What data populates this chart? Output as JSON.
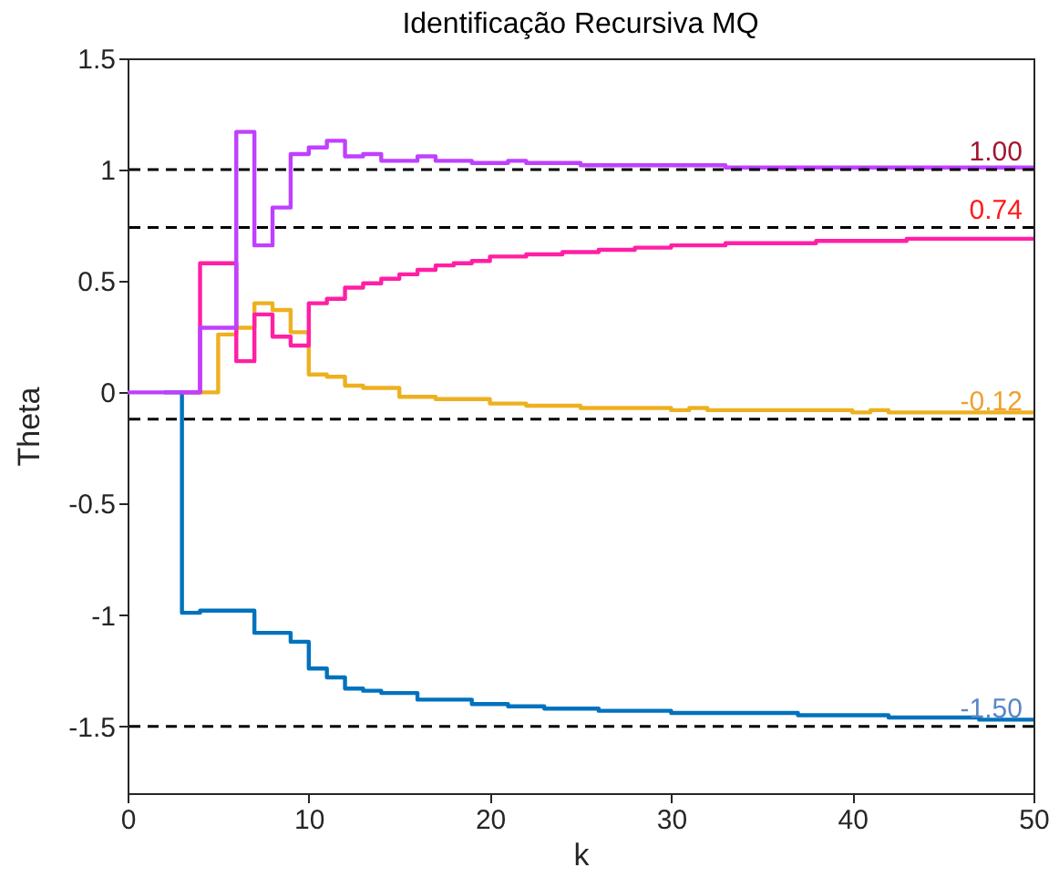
{
  "chart_data": {
    "type": "step",
    "title": "Identificação Recursiva MQ",
    "xlabel": "k",
    "ylabel": "Theta",
    "x": [
      0,
      1,
      2,
      3,
      4,
      5,
      6,
      7,
      8,
      9,
      10,
      11,
      12,
      13,
      14,
      15,
      16,
      17,
      18,
      19,
      20,
      21,
      22,
      23,
      24,
      25,
      26,
      27,
      28,
      29,
      30,
      31,
      32,
      33,
      34,
      35,
      36,
      37,
      38,
      39,
      40,
      41,
      42,
      43,
      44,
      45,
      46,
      47,
      48,
      49,
      50
    ],
    "series": [
      {
        "color": "#0072bd",
        "values": [
          null,
          null,
          0,
          -0.99,
          -0.98,
          -0.98,
          -0.98,
          -1.08,
          -1.08,
          -1.12,
          -1.24,
          -1.28,
          -1.33,
          -1.34,
          -1.35,
          -1.35,
          -1.38,
          -1.38,
          -1.38,
          -1.4,
          -1.4,
          -1.41,
          -1.41,
          -1.42,
          -1.42,
          -1.42,
          -1.43,
          -1.43,
          -1.43,
          -1.43,
          -1.44,
          -1.44,
          -1.44,
          -1.44,
          -1.44,
          -1.44,
          -1.44,
          -1.45,
          -1.45,
          -1.45,
          -1.45,
          -1.45,
          -1.46,
          -1.46,
          -1.46,
          -1.46,
          -1.46,
          -1.47,
          -1.47,
          -1.47,
          -1.47
        ]
      },
      {
        "color": "#edb120",
        "values": [
          null,
          null,
          null,
          0,
          0,
          0.26,
          0.29,
          0.4,
          0.37,
          0.27,
          0.08,
          0.07,
          0.03,
          0.02,
          0.02,
          -0.02,
          -0.02,
          -0.03,
          -0.03,
          -0.03,
          -0.05,
          -0.05,
          -0.06,
          -0.06,
          -0.06,
          -0.07,
          -0.07,
          -0.07,
          -0.07,
          -0.07,
          -0.08,
          -0.07,
          -0.08,
          -0.08,
          -0.08,
          -0.08,
          -0.08,
          -0.08,
          -0.08,
          -0.08,
          -0.09,
          -0.08,
          -0.09,
          -0.09,
          -0.09,
          -0.09,
          -0.09,
          -0.09,
          -0.09,
          -0.09,
          -0.09
        ]
      },
      {
        "color": "#ff1fa5",
        "values": [
          null,
          null,
          null,
          0,
          0.58,
          0.58,
          0.14,
          0.35,
          0.25,
          0.21,
          0.4,
          0.42,
          0.47,
          0.49,
          0.51,
          0.53,
          0.55,
          0.57,
          0.58,
          0.59,
          0.61,
          0.61,
          0.62,
          0.62,
          0.63,
          0.63,
          0.64,
          0.64,
          0.65,
          0.65,
          0.66,
          0.66,
          0.66,
          0.67,
          0.67,
          0.67,
          0.67,
          0.67,
          0.68,
          0.68,
          0.68,
          0.68,
          0.68,
          0.69,
          0.69,
          0.69,
          0.69,
          0.69,
          0.69,
          0.69,
          0.69
        ]
      },
      {
        "color": "#bf40ff",
        "values": [
          0,
          0,
          0,
          0,
          0.29,
          0.29,
          1.17,
          0.66,
          0.83,
          1.07,
          1.1,
          1.13,
          1.06,
          1.07,
          1.04,
          1.04,
          1.06,
          1.04,
          1.04,
          1.03,
          1.03,
          1.04,
          1.03,
          1.03,
          1.03,
          1.02,
          1.02,
          1.02,
          1.02,
          1.02,
          1.02,
          1.02,
          1.02,
          1.01,
          1.01,
          1.01,
          1.01,
          1.01,
          1.01,
          1.01,
          1.01,
          1.01,
          1.01,
          1.01,
          1.01,
          1.01,
          1.01,
          1.01,
          1.01,
          1.01,
          1.01
        ]
      }
    ],
    "ref_lines": [
      {
        "axis": "y",
        "value": 1,
        "label": "1.00",
        "color": "#000000",
        "line_style": "dashed"
      },
      {
        "axis": "y",
        "value": 0.74,
        "label": "0.74",
        "color": "#000000",
        "line_style": "dashed"
      },
      {
        "axis": "y",
        "value": -0.12,
        "label": "-0.12",
        "color": "#000000",
        "line_style": "dashed"
      },
      {
        "axis": "y",
        "value": -1.5,
        "label": "-1.50",
        "color": "#000000",
        "line_style": "dashed"
      }
    ],
    "xlim": [
      0,
      50
    ],
    "xticks": [
      0,
      10,
      20,
      30,
      40,
      50
    ],
    "ylim": [
      -1.8,
      1.5
    ],
    "yticks": [
      -1.5,
      -1,
      -0.5,
      0,
      0.5,
      1,
      1.5
    ],
    "grid": false
  }
}
